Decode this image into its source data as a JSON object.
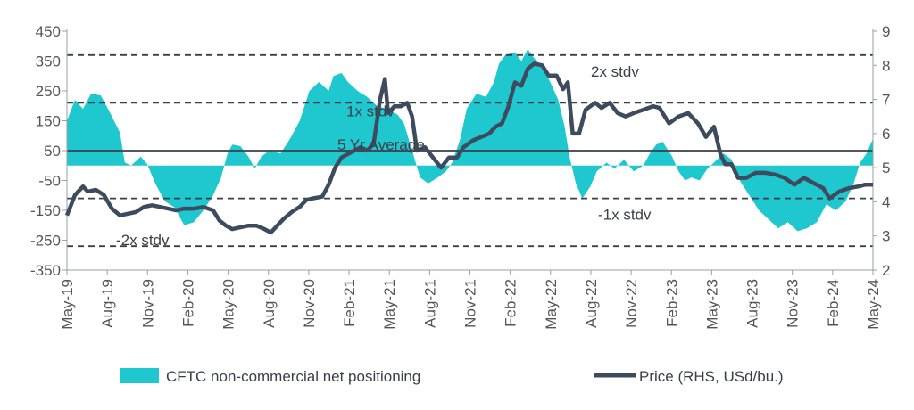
{
  "chart_data": {
    "type": "area",
    "title": "",
    "x_labels": [
      "May-19",
      "Aug-19",
      "Nov-19",
      "Feb-20",
      "May-20",
      "Aug-20",
      "Nov-20",
      "Feb-21",
      "May-21",
      "Aug-21",
      "Nov-21",
      "Feb-22",
      "May-22",
      "Aug-22",
      "Nov-22",
      "Feb-23",
      "May-23",
      "Aug-23",
      "Nov-23",
      "Feb-24",
      "May-24"
    ],
    "x_range": [
      "2019-05",
      "2024-05"
    ],
    "y_left": {
      "min": -350,
      "max": 450,
      "ticks": [
        "450",
        "350",
        "250",
        "150",
        "50",
        "-50",
        "-150",
        "-250",
        "-350"
      ]
    },
    "y_right": {
      "min": 2,
      "max": 9,
      "ticks": [
        "9",
        "8",
        "7",
        "6",
        "5",
        "4",
        "3",
        "2"
      ]
    },
    "grid": false,
    "legend_position": "bottom",
    "reference_lines": [
      {
        "label": "2x stdv",
        "value": 370,
        "style": "dashed"
      },
      {
        "label": "1x stdv",
        "value": 210,
        "style": "dashed"
      },
      {
        "label": "5 Yr Average",
        "value": 50,
        "style": "solid"
      },
      {
        "label": "-1x stdv",
        "value": -110,
        "style": "dashed"
      },
      {
        "label": "-2x stdv",
        "value": -270,
        "style": "dashed"
      }
    ],
    "series": [
      {
        "name": "CFTC non-commercial net positioning",
        "axis": "left",
        "kind": "area",
        "color": "#1fc8cf",
        "points": [
          [
            2019.37,
            150
          ],
          [
            2019.42,
            220
          ],
          [
            2019.47,
            190
          ],
          [
            2019.52,
            240
          ],
          [
            2019.58,
            235
          ],
          [
            2019.64,
            175
          ],
          [
            2019.7,
            110
          ],
          [
            2019.73,
            10
          ],
          [
            2019.77,
            0
          ],
          [
            2019.83,
            30
          ],
          [
            2019.87,
            5
          ],
          [
            2019.92,
            -60
          ],
          [
            2019.98,
            -120
          ],
          [
            2020.04,
            -140
          ],
          [
            2020.1,
            -200
          ],
          [
            2020.16,
            -190
          ],
          [
            2020.22,
            -150
          ],
          [
            2020.28,
            -100
          ],
          [
            2020.33,
            -40
          ],
          [
            2020.37,
            40
          ],
          [
            2020.4,
            70
          ],
          [
            2020.45,
            65
          ],
          [
            2020.5,
            30
          ],
          [
            2020.54,
            -10
          ],
          [
            2020.58,
            30
          ],
          [
            2020.63,
            50
          ],
          [
            2020.7,
            40
          ],
          [
            2020.76,
            90
          ],
          [
            2020.82,
            150
          ],
          [
            2020.88,
            250
          ],
          [
            2020.94,
            280
          ],
          [
            2021.0,
            250
          ],
          [
            2021.03,
            300
          ],
          [
            2021.08,
            310
          ],
          [
            2021.12,
            280
          ],
          [
            2021.18,
            250
          ],
          [
            2021.24,
            230
          ],
          [
            2021.3,
            200
          ],
          [
            2021.36,
            190
          ],
          [
            2021.43,
            170
          ],
          [
            2021.47,
            140
          ],
          [
            2021.52,
            50
          ],
          [
            2021.57,
            -40
          ],
          [
            2021.62,
            -60
          ],
          [
            2021.68,
            -40
          ],
          [
            2021.73,
            -20
          ],
          [
            2021.77,
            10
          ],
          [
            2021.82,
            90
          ],
          [
            2021.86,
            190
          ],
          [
            2021.92,
            240
          ],
          [
            2021.98,
            230
          ],
          [
            2022.03,
            280
          ],
          [
            2022.06,
            340
          ],
          [
            2022.1,
            370
          ],
          [
            2022.16,
            380
          ],
          [
            2022.2,
            350
          ],
          [
            2022.24,
            390
          ],
          [
            2022.28,
            360
          ],
          [
            2022.33,
            330
          ],
          [
            2022.38,
            280
          ],
          [
            2022.43,
            220
          ],
          [
            2022.47,
            130
          ],
          [
            2022.5,
            30
          ],
          [
            2022.54,
            -60
          ],
          [
            2022.58,
            -110
          ],
          [
            2022.63,
            -70
          ],
          [
            2022.67,
            -20
          ],
          [
            2022.73,
            10
          ],
          [
            2022.78,
            -10
          ],
          [
            2022.84,
            20
          ],
          [
            2022.9,
            -20
          ],
          [
            2022.96,
            0
          ],
          [
            2023.0,
            40
          ],
          [
            2023.04,
            70
          ],
          [
            2023.08,
            80
          ],
          [
            2023.14,
            30
          ],
          [
            2023.18,
            -20
          ],
          [
            2023.22,
            -50
          ],
          [
            2023.26,
            -40
          ],
          [
            2023.31,
            -50
          ],
          [
            2023.36,
            -10
          ],
          [
            2023.4,
            10
          ],
          [
            2023.46,
            40
          ],
          [
            2023.51,
            20
          ],
          [
            2023.56,
            -50
          ],
          [
            2023.62,
            -100
          ],
          [
            2023.68,
            -150
          ],
          [
            2023.74,
            -180
          ],
          [
            2023.8,
            -210
          ],
          [
            2023.86,
            -190
          ],
          [
            2023.92,
            -220
          ],
          [
            2023.98,
            -210
          ],
          [
            2024.04,
            -190
          ],
          [
            2024.1,
            -130
          ],
          [
            2024.16,
            -150
          ],
          [
            2024.22,
            -120
          ],
          [
            2024.27,
            -60
          ],
          [
            2024.31,
            10
          ],
          [
            2024.35,
            40
          ],
          [
            2024.39,
            90
          ]
        ]
      },
      {
        "name": "Price (RHS, USd/bu.)",
        "axis": "right",
        "kind": "line",
        "color": "#3e4b5e",
        "points": [
          [
            2019.37,
            3.6
          ],
          [
            2019.42,
            4.2
          ],
          [
            2019.47,
            4.45
          ],
          [
            2019.5,
            4.3
          ],
          [
            2019.55,
            4.35
          ],
          [
            2019.6,
            4.2
          ],
          [
            2019.65,
            3.8
          ],
          [
            2019.7,
            3.6
          ],
          [
            2019.75,
            3.65
          ],
          [
            2019.8,
            3.7
          ],
          [
            2019.85,
            3.85
          ],
          [
            2019.9,
            3.9
          ],
          [
            2019.95,
            3.85
          ],
          [
            2020.0,
            3.8
          ],
          [
            2020.05,
            3.75
          ],
          [
            2020.1,
            3.8
          ],
          [
            2020.16,
            3.8
          ],
          [
            2020.22,
            3.85
          ],
          [
            2020.28,
            3.75
          ],
          [
            2020.32,
            3.45
          ],
          [
            2020.36,
            3.3
          ],
          [
            2020.4,
            3.2
          ],
          [
            2020.45,
            3.25
          ],
          [
            2020.5,
            3.3
          ],
          [
            2020.55,
            3.3
          ],
          [
            2020.6,
            3.2
          ],
          [
            2020.64,
            3.1
          ],
          [
            2020.68,
            3.3
          ],
          [
            2020.72,
            3.5
          ],
          [
            2020.77,
            3.7
          ],
          [
            2020.82,
            3.85
          ],
          [
            2020.86,
            4.05
          ],
          [
            2020.9,
            4.1
          ],
          [
            2020.96,
            4.15
          ],
          [
            2021.0,
            4.5
          ],
          [
            2021.04,
            5.0
          ],
          [
            2021.08,
            5.3
          ],
          [
            2021.12,
            5.4
          ],
          [
            2021.16,
            5.5
          ],
          [
            2021.2,
            5.6
          ],
          [
            2021.24,
            5.5
          ],
          [
            2021.28,
            5.7
          ],
          [
            2021.32,
            7.0
          ],
          [
            2021.35,
            7.6
          ],
          [
            2021.37,
            6.6
          ],
          [
            2021.41,
            6.8
          ],
          [
            2021.45,
            6.8
          ],
          [
            2021.49,
            6.9
          ],
          [
            2021.52,
            6.5
          ],
          [
            2021.55,
            5.5
          ],
          [
            2021.6,
            5.6
          ],
          [
            2021.65,
            5.3
          ],
          [
            2021.7,
            5.0
          ],
          [
            2021.75,
            5.3
          ],
          [
            2021.8,
            5.3
          ],
          [
            2021.84,
            5.6
          ],
          [
            2021.9,
            5.8
          ],
          [
            2021.95,
            5.9
          ],
          [
            2022.0,
            6.0
          ],
          [
            2022.04,
            6.2
          ],
          [
            2022.08,
            6.3
          ],
          [
            2022.12,
            6.8
          ],
          [
            2022.16,
            7.5
          ],
          [
            2022.2,
            7.4
          ],
          [
            2022.24,
            7.9
          ],
          [
            2022.28,
            8.05
          ],
          [
            2022.33,
            8.0
          ],
          [
            2022.37,
            7.7
          ],
          [
            2022.42,
            7.7
          ],
          [
            2022.46,
            7.3
          ],
          [
            2022.49,
            7.5
          ],
          [
            2022.52,
            6.0
          ],
          [
            2022.56,
            6.0
          ],
          [
            2022.6,
            6.7
          ],
          [
            2022.66,
            6.9
          ],
          [
            2022.7,
            6.75
          ],
          [
            2022.75,
            6.9
          ],
          [
            2022.8,
            6.6
          ],
          [
            2022.85,
            6.5
          ],
          [
            2022.9,
            6.6
          ],
          [
            2022.96,
            6.7
          ],
          [
            2023.02,
            6.8
          ],
          [
            2023.06,
            6.75
          ],
          [
            2023.12,
            6.3
          ],
          [
            2023.18,
            6.5
          ],
          [
            2023.24,
            6.6
          ],
          [
            2023.3,
            6.3
          ],
          [
            2023.35,
            5.9
          ],
          [
            2023.4,
            6.2
          ],
          [
            2023.44,
            5.4
          ],
          [
            2023.47,
            5.1
          ],
          [
            2023.51,
            5.1
          ],
          [
            2023.55,
            4.7
          ],
          [
            2023.6,
            4.7
          ],
          [
            2023.66,
            4.85
          ],
          [
            2023.72,
            4.85
          ],
          [
            2023.78,
            4.8
          ],
          [
            2023.84,
            4.7
          ],
          [
            2023.9,
            4.5
          ],
          [
            2023.96,
            4.7
          ],
          [
            2024.02,
            4.55
          ],
          [
            2024.08,
            4.4
          ],
          [
            2024.12,
            4.1
          ],
          [
            2024.18,
            4.3
          ],
          [
            2024.24,
            4.4
          ],
          [
            2024.3,
            4.45
          ],
          [
            2024.34,
            4.5
          ],
          [
            2024.39,
            4.5
          ]
        ]
      }
    ]
  }
}
